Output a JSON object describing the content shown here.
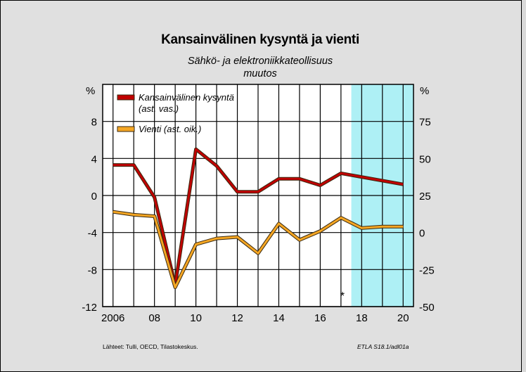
{
  "title": "Kansainvälinen kysyntä ja vienti",
  "subtitle_1": "Sähkö- ja elektroniikkateollisuus",
  "subtitle_2": "muutos",
  "source": "Lähteet:   Tulli, OECD, Tilastokeskus.",
  "code": "ETLA S18.1/adl01a",
  "forecast_marker": "*",
  "colors": {
    "series_demand": "#c00000",
    "series_export": "#f5a623",
    "forecast_band": "#aef0f5",
    "plot_bg": "#ffffff",
    "page_bg": "#e0e0e0"
  },
  "chart_data": {
    "type": "line",
    "grid": true,
    "legend_position": "top-left",
    "forecast_shading_from": 2017.5,
    "x_ticks": [
      {
        "value": 2006,
        "label": "2006"
      },
      {
        "value": 2008,
        "label": "08"
      },
      {
        "value": 2010,
        "label": "10"
      },
      {
        "value": 2012,
        "label": "12"
      },
      {
        "value": 2014,
        "label": "14"
      },
      {
        "value": 2016,
        "label": "16"
      },
      {
        "value": 2018,
        "label": "18"
      },
      {
        "value": 2020,
        "label": "20"
      }
    ],
    "xlim": [
      2005.5,
      2020.5
    ],
    "y_left": {
      "unit": "%",
      "ylim": [
        -12,
        12
      ],
      "ticks": [
        "8",
        "4",
        "0",
        "-4",
        "-8",
        "-12"
      ],
      "tick_values": [
        8,
        4,
        0,
        -4,
        -8,
        -12
      ]
    },
    "y_right": {
      "unit": "%",
      "ylim": [
        -50,
        100
      ],
      "ticks": [
        "75",
        "50",
        "25",
        "0",
        "-25",
        "-50"
      ],
      "tick_values": [
        75,
        50,
        25,
        0,
        -25,
        -50
      ]
    },
    "series": [
      {
        "name": "Kansainvälinen kysyntä\n(ast. vas.)",
        "axis": "left",
        "x": [
          2006,
          2007,
          2008,
          2009,
          2010,
          2011,
          2012,
          2013,
          2014,
          2015,
          2016,
          2017,
          2018,
          2019,
          2020
        ],
        "y": [
          3.3,
          3.3,
          -0.2,
          -9.7,
          5.0,
          3.2,
          0.4,
          0.4,
          1.8,
          1.8,
          1.1,
          2.4,
          2.0,
          1.6,
          1.2
        ]
      },
      {
        "name": "Vienti (ast. oik.)",
        "axis": "right",
        "x": [
          2006,
          2007,
          2008,
          2009,
          2010,
          2011,
          2012,
          2013,
          2014,
          2015,
          2016,
          2017,
          2018,
          2019,
          2020
        ],
        "y": [
          14,
          12,
          11,
          -37,
          -8,
          -4,
          -3,
          -14,
          6,
          -5,
          1,
          10,
          3,
          4,
          4
        ]
      }
    ]
  }
}
